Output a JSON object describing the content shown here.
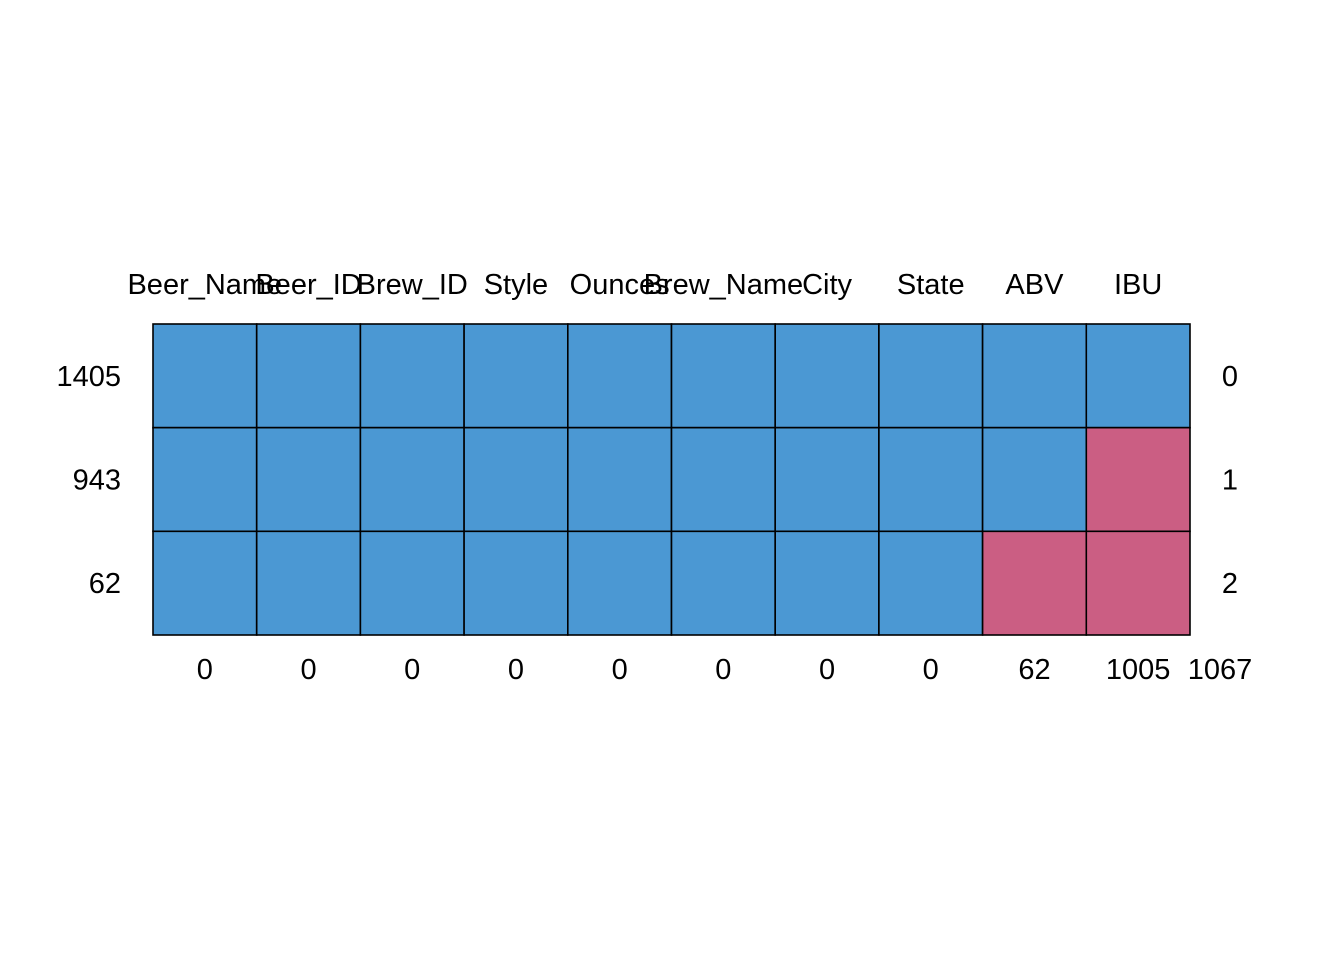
{
  "chart_data": {
    "type": "heatmap",
    "title": "",
    "variables": [
      "Beer_Name",
      "Beer_ID",
      "Brew_ID",
      "Style",
      "Ounces",
      "Brew_Name",
      "City",
      "State",
      "ABV",
      "IBU"
    ],
    "patterns": [
      {
        "count": 1405,
        "missing_in_pattern": 0,
        "observed": [
          1,
          1,
          1,
          1,
          1,
          1,
          1,
          1,
          1,
          1
        ]
      },
      {
        "count": 943,
        "missing_in_pattern": 1,
        "observed": [
          1,
          1,
          1,
          1,
          1,
          1,
          1,
          1,
          1,
          0
        ]
      },
      {
        "count": 62,
        "missing_in_pattern": 2,
        "observed": [
          1,
          1,
          1,
          1,
          1,
          1,
          1,
          1,
          0,
          0
        ]
      }
    ],
    "missing_per_variable": [
      0,
      0,
      0,
      0,
      0,
      0,
      0,
      0,
      62,
      1005
    ],
    "total_missing": 1067,
    "colors": {
      "observed": "#4B98D3",
      "missing": "#CB5E83",
      "border": "#000000"
    }
  }
}
